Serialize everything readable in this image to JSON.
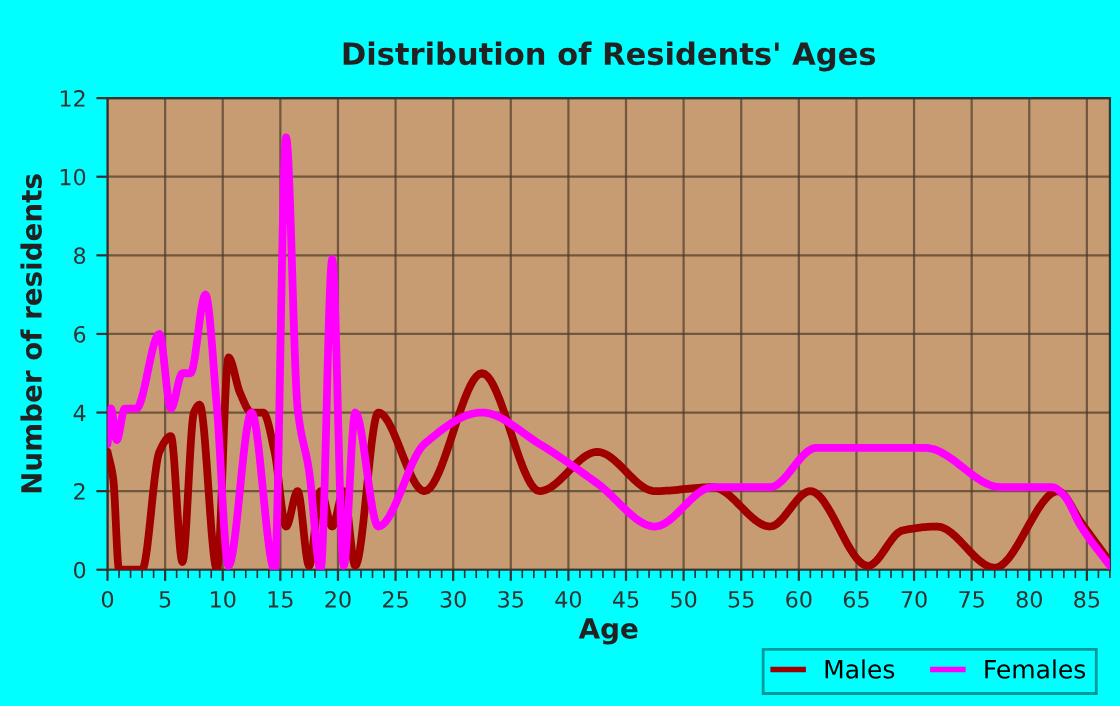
{
  "chart_data": {
    "type": "line",
    "title": "Distribution of Residents' Ages",
    "xlabel": "Age",
    "ylabel": "Number of residents",
    "xlim": [
      0,
      87
    ],
    "xticks": [
      0,
      5,
      10,
      15,
      20,
      25,
      30,
      35,
      40,
      45,
      50,
      55,
      60,
      65,
      70,
      75,
      80,
      85
    ],
    "ylim": [
      0,
      12
    ],
    "yticks": [
      0,
      2,
      4,
      6,
      8,
      10,
      12
    ],
    "grid": true,
    "legend": "bottom right",
    "marker": "none",
    "line_style": "solid",
    "series": [
      {
        "name": "Males",
        "color": "#a00000",
        "x": [
          0,
          0.5,
          1,
          2,
          3,
          4.5,
          5.5,
          6.5,
          7.5,
          8,
          9.5,
          10.5,
          11.5,
          12.5,
          13.5,
          14.5,
          15.5,
          16.5,
          17.5,
          18.5,
          19.5,
          20.5,
          21.5,
          23.5,
          27.5,
          32.5,
          37.5,
          42.5,
          47.5,
          52.5,
          57.5,
          61,
          66,
          69,
          72,
          77,
          82.5,
          84.5,
          87
        ],
        "values": [
          3,
          2.3,
          0,
          0,
          0,
          3,
          3.4,
          0.2,
          4,
          4.2,
          0,
          5.4,
          4.5,
          4,
          4,
          3,
          1.1,
          2,
          0.1,
          2,
          1.1,
          2,
          0.1,
          4,
          2,
          5,
          2,
          3,
          2,
          2.1,
          1.1,
          2,
          0.1,
          1,
          1.1,
          0.05,
          2,
          1.2,
          0.2
        ]
      },
      {
        "name": "Females",
        "color": "#ff00ff",
        "x": [
          0,
          0.3,
          0.8,
          1.5,
          2.5,
          4.5,
          5.5,
          6.5,
          7.2,
          8.5,
          9.5,
          10.5,
          12.5,
          14.5,
          15.5,
          16.5,
          17.5,
          18.5,
          19.5,
          20.5,
          21.5,
          23.5,
          27.5,
          32.5,
          37.5,
          42.5,
          47.5,
          52.5,
          57.5,
          61.5,
          66,
          71,
          77.5,
          82,
          83,
          84.5,
          87
        ],
        "values": [
          3.2,
          4.1,
          3.3,
          4.1,
          4.1,
          6,
          4.1,
          5,
          5,
          7,
          4.1,
          0.1,
          4,
          0,
          11,
          4.1,
          2.5,
          0,
          7.9,
          0.1,
          4,
          1.1,
          3.2,
          4,
          3.2,
          2.2,
          1.1,
          2.1,
          2.1,
          3.1,
          3.1,
          3.1,
          2.1,
          2.1,
          1.9,
          1.1,
          0.1
        ]
      }
    ]
  }
}
